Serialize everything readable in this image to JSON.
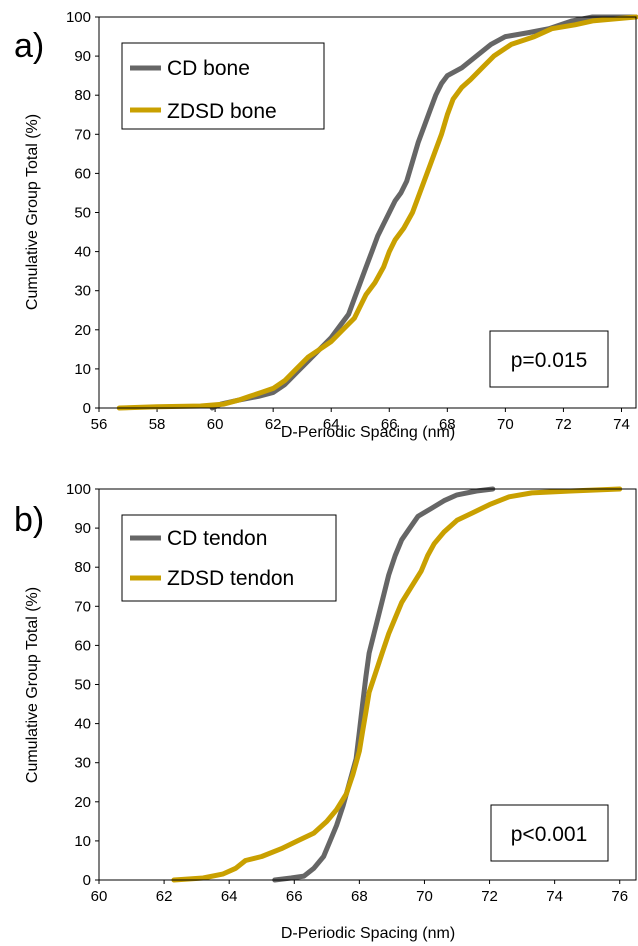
{
  "chart_data": [
    {
      "type": "line",
      "panel_label": "a)",
      "xlabel": "D-Periodic Spacing (nm)",
      "ylabel": "Cumulative Group Total (%)",
      "xlim": [
        56,
        74.5
      ],
      "ylim": [
        0,
        100
      ],
      "xticks": [
        "56",
        "58",
        "60",
        "62",
        "64",
        "66",
        "68",
        "70",
        "72",
        "74"
      ],
      "yticks": [
        "0",
        "10",
        "20",
        "30",
        "40",
        "50",
        "60",
        "70",
        "80",
        "90",
        "100"
      ],
      "annotation": "p=0.015",
      "legend_position": "top-left",
      "series": [
        {
          "name": "CD bone",
          "color": "#666666",
          "points": [
            [
              59.9,
              0
            ],
            [
              60.2,
              1
            ],
            [
              60.8,
              2
            ],
            [
              61.5,
              3
            ],
            [
              62.0,
              4
            ],
            [
              62.4,
              6
            ],
            [
              62.8,
              9
            ],
            [
              63.2,
              12
            ],
            [
              63.6,
              15
            ],
            [
              64.0,
              18
            ],
            [
              64.3,
              21
            ],
            [
              64.6,
              24
            ],
            [
              64.8,
              28
            ],
            [
              65.0,
              32
            ],
            [
              65.2,
              36
            ],
            [
              65.4,
              40
            ],
            [
              65.6,
              44
            ],
            [
              65.8,
              47
            ],
            [
              66.0,
              50
            ],
            [
              66.2,
              53
            ],
            [
              66.4,
              55
            ],
            [
              66.6,
              58
            ],
            [
              66.8,
              63
            ],
            [
              67.0,
              68
            ],
            [
              67.2,
              72
            ],
            [
              67.4,
              76
            ],
            [
              67.6,
              80
            ],
            [
              67.8,
              83
            ],
            [
              68.0,
              85
            ],
            [
              68.5,
              87
            ],
            [
              69.0,
              90
            ],
            [
              69.5,
              93
            ],
            [
              70.0,
              95
            ],
            [
              70.8,
              96
            ],
            [
              71.5,
              97
            ],
            [
              72.3,
              99
            ],
            [
              73.0,
              100
            ],
            [
              74.5,
              100
            ]
          ]
        },
        {
          "name": "ZDSD bone",
          "color": "#c9a000",
          "points": [
            [
              56.7,
              0
            ],
            [
              58.0,
              0.3
            ],
            [
              59.5,
              0.5
            ],
            [
              60.3,
              1
            ],
            [
              60.8,
              2
            ],
            [
              61.2,
              3
            ],
            [
              61.6,
              4
            ],
            [
              62.0,
              5
            ],
            [
              62.4,
              7
            ],
            [
              62.8,
              10
            ],
            [
              63.2,
              13
            ],
            [
              63.6,
              15
            ],
            [
              64.0,
              17
            ],
            [
              64.4,
              20
            ],
            [
              64.8,
              23
            ],
            [
              65.0,
              26
            ],
            [
              65.2,
              29
            ],
            [
              65.5,
              32
            ],
            [
              65.8,
              36
            ],
            [
              66.0,
              40
            ],
            [
              66.2,
              43
            ],
            [
              66.5,
              46
            ],
            [
              66.8,
              50
            ],
            [
              67.0,
              54
            ],
            [
              67.2,
              58
            ],
            [
              67.4,
              62
            ],
            [
              67.6,
              66
            ],
            [
              67.8,
              70
            ],
            [
              68.0,
              75
            ],
            [
              68.2,
              79
            ],
            [
              68.5,
              82
            ],
            [
              68.8,
              84
            ],
            [
              69.2,
              87
            ],
            [
              69.6,
              90
            ],
            [
              70.2,
              93
            ],
            [
              71.0,
              95
            ],
            [
              71.6,
              97
            ],
            [
              72.4,
              98
            ],
            [
              73.0,
              99
            ],
            [
              74.5,
              100
            ]
          ]
        }
      ]
    },
    {
      "type": "line",
      "panel_label": "b)",
      "xlabel": "D-Periodic Spacing (nm)",
      "ylabel": "Cumulative Group Total (%)",
      "xlim": [
        60,
        76.5
      ],
      "ylim": [
        0,
        100
      ],
      "xticks": [
        "60",
        "62",
        "64",
        "66",
        "68",
        "70",
        "72",
        "74",
        "76"
      ],
      "yticks": [
        "0",
        "10",
        "20",
        "30",
        "40",
        "50",
        "60",
        "70",
        "80",
        "90",
        "100"
      ],
      "annotation": "p<0.001",
      "legend_position": "top-left",
      "series": [
        {
          "name": "CD tendon",
          "color": "#666666",
          "points": [
            [
              65.4,
              0
            ],
            [
              65.9,
              0.5
            ],
            [
              66.3,
              1
            ],
            [
              66.6,
              3
            ],
            [
              66.9,
              6
            ],
            [
              67.1,
              10
            ],
            [
              67.3,
              14
            ],
            [
              67.5,
              19
            ],
            [
              67.7,
              25
            ],
            [
              67.9,
              31
            ],
            [
              68.0,
              38
            ],
            [
              68.1,
              45
            ],
            [
              68.2,
              52
            ],
            [
              68.3,
              58
            ],
            [
              68.45,
              63
            ],
            [
              68.6,
              68
            ],
            [
              68.75,
              73
            ],
            [
              68.9,
              78
            ],
            [
              69.1,
              83
            ],
            [
              69.3,
              87
            ],
            [
              69.55,
              90
            ],
            [
              69.8,
              93
            ],
            [
              70.2,
              95
            ],
            [
              70.6,
              97
            ],
            [
              71.0,
              98.5
            ],
            [
              71.6,
              99.5
            ],
            [
              72.1,
              100
            ]
          ]
        },
        {
          "name": "ZDSD tendon",
          "color": "#c9a000",
          "points": [
            [
              62.3,
              0
            ],
            [
              63.2,
              0.5
            ],
            [
              63.8,
              1.5
            ],
            [
              64.2,
              3
            ],
            [
              64.5,
              5
            ],
            [
              65.0,
              6
            ],
            [
              65.6,
              8
            ],
            [
              66.1,
              10
            ],
            [
              66.6,
              12
            ],
            [
              67.0,
              15
            ],
            [
              67.3,
              18
            ],
            [
              67.6,
              22
            ],
            [
              67.8,
              27
            ],
            [
              68.0,
              33
            ],
            [
              68.1,
              38
            ],
            [
              68.2,
              43
            ],
            [
              68.3,
              48
            ],
            [
              68.5,
              53
            ],
            [
              68.7,
              58
            ],
            [
              68.9,
              63
            ],
            [
              69.1,
              67
            ],
            [
              69.3,
              71
            ],
            [
              69.6,
              75
            ],
            [
              69.9,
              79
            ],
            [
              70.1,
              83
            ],
            [
              70.3,
              86
            ],
            [
              70.6,
              89
            ],
            [
              71.0,
              92
            ],
            [
              71.5,
              94
            ],
            [
              72.0,
              96
            ],
            [
              72.6,
              98
            ],
            [
              73.3,
              99
            ],
            [
              74.5,
              99.5
            ],
            [
              76.0,
              100
            ]
          ]
        }
      ]
    }
  ]
}
